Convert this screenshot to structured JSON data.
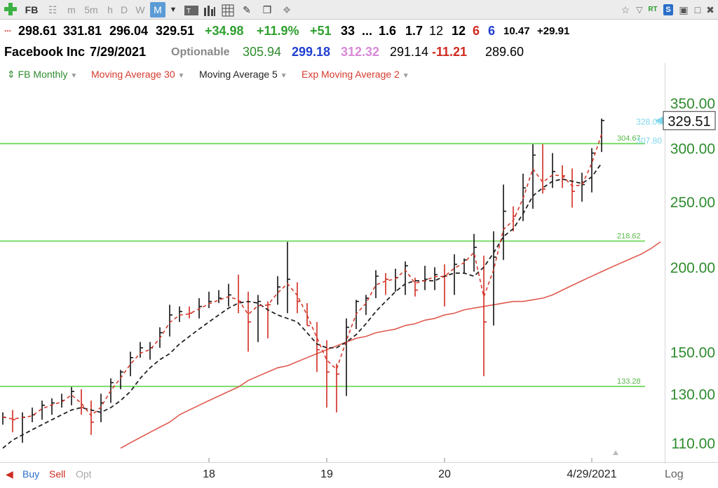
{
  "toolbar": {
    "symbol": "FB",
    "timeframes": [
      "m",
      "5m",
      "h",
      "D",
      "W",
      "M"
    ],
    "selected_timeframe": "M",
    "status_labels": [
      "RT",
      "S"
    ]
  },
  "quote": {
    "open": "298.61",
    "high": "331.81",
    "low": "296.04",
    "last": "329.51",
    "change": "+34.98",
    "pct_change": "+11.9%",
    "plus51": "+51",
    "v33": "33",
    "ellipsis": "...",
    "v16": "1.6",
    "v17": "1.7",
    "v12a": "12",
    "v12b": "12",
    "v6a": "6",
    "v6b": "6",
    "v1047": "10.47",
    "v2991": "+29.91",
    "company": "Facebook Inc",
    "date": "7/29/2021",
    "optionable": "Optionable",
    "f1": "305.94",
    "f2": "299.18",
    "f3": "312.32",
    "f4": "291.14",
    "f5": "-11.21",
    "f6": "289.60"
  },
  "legend": {
    "symbol_label": "FB Monthly",
    "ma30": "Moving Average 30",
    "ma5": "Moving Average 5",
    "ema2": "Exp Moving Average 2"
  },
  "bottom": {
    "buy": "Buy",
    "sell": "Sell",
    "opt": "Opt",
    "log": "Log"
  },
  "colors": {
    "green_line": "#7ddc6a",
    "ma30": "#e05a4f",
    "ma5": "#222222",
    "ema2": "#d63a2e",
    "axis_text": "#2e8b2e",
    "bar": "#111111",
    "bar_red": "#d02a20"
  },
  "chart_data": {
    "type": "line",
    "title": "FB Monthly",
    "scale": "log",
    "ylim": [
      103,
      375
    ],
    "y_ticks": [
      110,
      130,
      150,
      200,
      250,
      300,
      350
    ],
    "y_tick_labels": [
      "110.00",
      "130.00",
      "150.00",
      "200.00",
      "250.00",
      "300.00",
      "350.00"
    ],
    "x_ticks": [
      {
        "label": "18",
        "index": 21
      },
      {
        "label": "19",
        "index": 33
      },
      {
        "label": "20",
        "index": 45
      },
      {
        "label": "4/29/2021",
        "index": 60
      }
    ],
    "horizontal_lines": [
      {
        "value": 304.67,
        "label": "304.67"
      },
      {
        "value": 218.62,
        "label": "218.62"
      },
      {
        "value": 133.28,
        "label": "133.28"
      }
    ],
    "price_labels": [
      {
        "value": 328.0,
        "label": "328.00"
      },
      {
        "value": 307.8,
        "label": "307.80"
      }
    ],
    "last_price": {
      "value": 329.51,
      "label": "329.51"
    },
    "bars": [
      {
        "h": 122,
        "l": 117,
        "c": 120
      },
      {
        "h": 123,
        "l": 114,
        "c": 119
      },
      {
        "h": 122,
        "l": 110,
        "c": 120
      },
      {
        "h": 124,
        "l": 118,
        "c": 121
      },
      {
        "h": 127,
        "l": 119,
        "c": 125
      },
      {
        "h": 128,
        "l": 121,
        "c": 126
      },
      {
        "h": 130,
        "l": 124,
        "c": 127
      },
      {
        "h": 133,
        "l": 125,
        "c": 131
      },
      {
        "h": 132,
        "l": 121,
        "c": 124
      },
      {
        "h": 127,
        "l": 113,
        "c": 118
      },
      {
        "h": 130,
        "l": 118,
        "c": 126
      },
      {
        "h": 137,
        "l": 126,
        "c": 135
      },
      {
        "h": 141,
        "l": 132,
        "c": 140
      },
      {
        "h": 150,
        "l": 138,
        "c": 147
      },
      {
        "h": 155,
        "l": 147,
        "c": 152
      },
      {
        "h": 155,
        "l": 146,
        "c": 152
      },
      {
        "h": 163,
        "l": 152,
        "c": 160
      },
      {
        "h": 176,
        "l": 158,
        "c": 170
      },
      {
        "h": 175,
        "l": 166,
        "c": 172
      },
      {
        "h": 175,
        "l": 168,
        "c": 171
      },
      {
        "h": 180,
        "l": 168,
        "c": 175
      },
      {
        "h": 184,
        "l": 174,
        "c": 178
      },
      {
        "h": 185,
        "l": 177,
        "c": 180
      },
      {
        "h": 189,
        "l": 175,
        "c": 182
      },
      {
        "h": 195,
        "l": 171,
        "c": 178
      },
      {
        "h": 184,
        "l": 150,
        "c": 166
      },
      {
        "h": 182,
        "l": 155,
        "c": 178
      },
      {
        "h": 178,
        "l": 157,
        "c": 176
      },
      {
        "h": 194,
        "l": 176,
        "c": 187
      },
      {
        "h": 218,
        "l": 171,
        "c": 192
      },
      {
        "h": 190,
        "l": 171,
        "c": 178
      },
      {
        "h": 177,
        "l": 164,
        "c": 164
      },
      {
        "h": 166,
        "l": 140,
        "c": 151
      },
      {
        "h": 156,
        "l": 124,
        "c": 140
      },
      {
        "h": 144,
        "l": 122,
        "c": 139
      },
      {
        "h": 168,
        "l": 129,
        "c": 163
      },
      {
        "h": 179,
        "l": 162,
        "c": 178
      },
      {
        "h": 182,
        "l": 170,
        "c": 180
      },
      {
        "h": 198,
        "l": 180,
        "c": 194
      },
      {
        "h": 196,
        "l": 182,
        "c": 192
      },
      {
        "h": 199,
        "l": 184,
        "c": 193
      },
      {
        "h": 204,
        "l": 182,
        "c": 201
      },
      {
        "h": 193,
        "l": 181,
        "c": 185
      },
      {
        "h": 201,
        "l": 185,
        "c": 192
      },
      {
        "h": 200,
        "l": 185,
        "c": 195
      },
      {
        "h": 202,
        "l": 175,
        "c": 194
      },
      {
        "h": 209,
        "l": 182,
        "c": 202
      },
      {
        "h": 206,
        "l": 196,
        "c": 205
      },
      {
        "h": 224,
        "l": 197,
        "c": 214
      },
      {
        "h": 208,
        "l": 138,
        "c": 166
      },
      {
        "h": 226,
        "l": 164,
        "c": 207
      },
      {
        "h": 265,
        "l": 205,
        "c": 242
      },
      {
        "h": 246,
        "l": 226,
        "c": 238
      },
      {
        "h": 275,
        "l": 234,
        "c": 262
      },
      {
        "h": 304,
        "l": 244,
        "c": 293
      },
      {
        "h": 304,
        "l": 257,
        "c": 261
      },
      {
        "h": 295,
        "l": 262,
        "c": 277
      },
      {
        "h": 283,
        "l": 262,
        "c": 273
      },
      {
        "h": 280,
        "l": 245,
        "c": 259
      },
      {
        "h": 276,
        "l": 250,
        "c": 265
      },
      {
        "h": 300,
        "l": 258,
        "c": 295
      },
      {
        "h": 331.81,
        "l": 296.04,
        "c": 329.51
      }
    ],
    "ma30": {
      "start_index": 12,
      "values": [
        108,
        110,
        112,
        114,
        116,
        118,
        121,
        123,
        125,
        127,
        129,
        131,
        133,
        136,
        138,
        140,
        142,
        143,
        145,
        147,
        149,
        151,
        153,
        155,
        157,
        158,
        160,
        161,
        162,
        164,
        165,
        167,
        168,
        170,
        171,
        173,
        174,
        175,
        176,
        177,
        178,
        178,
        179,
        180,
        182,
        185,
        188,
        191,
        194,
        197,
        200,
        203,
        206,
        209,
        213,
        218
      ]
    },
    "ma5": [
      108,
      111,
      113,
      115,
      117,
      119,
      121,
      123,
      124,
      123,
      122,
      124,
      127,
      131,
      137,
      142,
      146,
      149,
      154,
      158,
      162,
      166,
      170,
      174,
      177,
      178,
      177,
      173,
      170,
      168,
      166,
      160,
      154,
      152,
      152,
      155,
      159,
      165,
      172,
      178,
      184,
      189,
      191,
      191,
      191,
      194,
      196,
      196,
      194,
      200,
      210,
      222,
      228,
      240,
      255,
      262,
      268,
      270,
      268,
      266,
      272,
      285
    ]
  }
}
